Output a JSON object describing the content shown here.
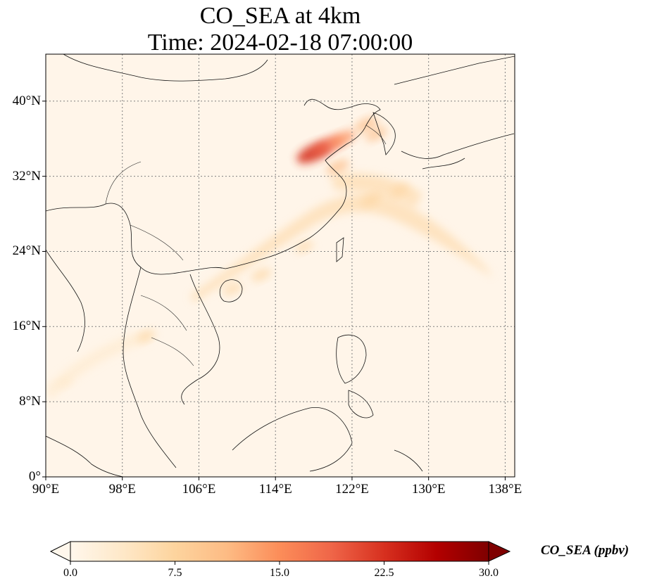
{
  "title": {
    "line1": "CO_SEA at 4km",
    "line2": "Time: 2024-02-18 07:00:00"
  },
  "map": {
    "lon_range": [
      90,
      139
    ],
    "lat_range": [
      0,
      45
    ],
    "lat_ticks": [
      {
        "value": 40,
        "label": "40°N"
      },
      {
        "value": 32,
        "label": "32°N"
      },
      {
        "value": 24,
        "label": "24°N"
      },
      {
        "value": 16,
        "label": "16°N"
      },
      {
        "value": 8,
        "label": "8°N"
      },
      {
        "value": 0,
        "label": "0°"
      }
    ],
    "lon_ticks": [
      {
        "value": 90,
        "label": "90°E"
      },
      {
        "value": 98,
        "label": "98°E"
      },
      {
        "value": 106,
        "label": "106°E"
      },
      {
        "value": 114,
        "label": "114°E"
      },
      {
        "value": 122,
        "label": "122°E"
      },
      {
        "value": 130,
        "label": "130°E"
      },
      {
        "value": 138,
        "label": "138°E"
      }
    ],
    "background_color": "#fff5e9",
    "grid_color": "#808080",
    "plumes": [
      {
        "lon": 118.0,
        "lat": 34.5,
        "value": 24
      },
      {
        "lon": 119.5,
        "lat": 35.3,
        "value": 18
      },
      {
        "lon": 121.0,
        "lat": 36.0,
        "value": 14
      },
      {
        "lon": 123.5,
        "lat": 37.5,
        "value": 12
      },
      {
        "lon": 124.5,
        "lat": 36.5,
        "value": 10
      },
      {
        "lon": 120.5,
        "lat": 33.0,
        "value": 11
      },
      {
        "lon": 124.0,
        "lat": 29.5,
        "value": 9
      },
      {
        "lon": 127.0,
        "lat": 30.5,
        "value": 7
      },
      {
        "lon": 117.0,
        "lat": 24.5,
        "value": 6
      },
      {
        "lon": 112.5,
        "lat": 21.5,
        "value": 8
      },
      {
        "lon": 109.5,
        "lat": 20.0,
        "value": 7
      },
      {
        "lon": 100.5,
        "lat": 15.0,
        "value": 6
      },
      {
        "lon": 92.0,
        "lat": 10.0,
        "value": 3
      }
    ]
  },
  "colorbar": {
    "label": "CO_SEA (ppbv)",
    "min": 0,
    "max": 30,
    "extend": "both",
    "ticks": [
      "0.0",
      "7.5",
      "15.0",
      "22.5",
      "30.0"
    ],
    "colormap": [
      "#fff7ec",
      "#fee8c8",
      "#fdd49e",
      "#fdbb84",
      "#fc8d59",
      "#ef6548",
      "#d7301f",
      "#b30000",
      "#7f0000"
    ]
  }
}
